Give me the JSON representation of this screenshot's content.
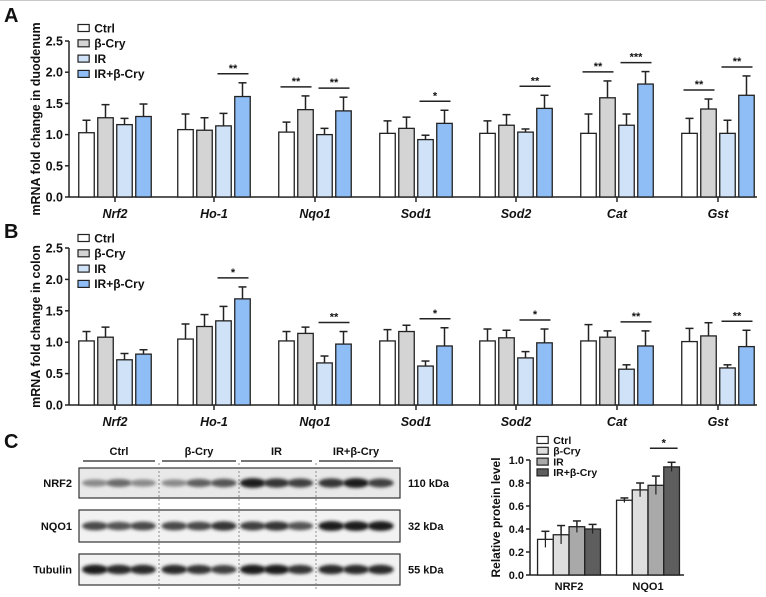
{
  "groups": [
    "Ctrl",
    "β-Cry",
    "IR",
    "IR+β-Cry"
  ],
  "colors_ab": [
    "#ffffff",
    "#d4d4d4",
    "#cfe2f8",
    "#8fbdf5"
  ],
  "colors_c": [
    "#ffffff",
    "#dedede",
    "#a9a9a9",
    "#5e5e5e"
  ],
  "chart_data": [
    {
      "panel": "A",
      "type": "bar",
      "ylabel": "mRNA fold change in duodenum",
      "ylim": [
        0,
        2.5
      ],
      "yticks": [
        "0.0",
        "0.5",
        "1.0",
        "1.5",
        "2.0",
        "2.5"
      ],
      "legend_placement": "top-left",
      "categories": [
        "Nrf2",
        "Ho-1",
        "Nqo1",
        "Sod1",
        "Sod2",
        "Cat",
        "Gst"
      ],
      "series": [
        {
          "name": "Ctrl",
          "values": [
            1.03,
            1.08,
            1.04,
            1.02,
            1.02,
            1.02,
            1.02
          ],
          "error": [
            0.2,
            0.25,
            0.16,
            0.2,
            0.2,
            0.31,
            0.24
          ]
        },
        {
          "name": "β-Cry",
          "values": [
            1.27,
            1.07,
            1.4,
            1.1,
            1.15,
            1.59,
            1.41
          ],
          "error": [
            0.21,
            0.2,
            0.22,
            0.18,
            0.17,
            0.27,
            0.16
          ]
        },
        {
          "name": "IR",
          "values": [
            1.16,
            1.14,
            1.0,
            0.92,
            1.04,
            1.15,
            1.02
          ],
          "error": [
            0.1,
            0.2,
            0.1,
            0.07,
            0.05,
            0.18,
            0.21
          ]
        },
        {
          "name": "IR+β-Cry",
          "values": [
            1.29,
            1.61,
            1.38,
            1.18,
            1.42,
            1.81,
            1.63
          ],
          "error": [
            0.2,
            0.22,
            0.22,
            0.21,
            0.21,
            0.2,
            0.31
          ]
        }
      ],
      "significance": [
        {
          "category": "Ho-1",
          "pair": [
            2,
            3
          ],
          "label": "**"
        },
        {
          "category": "Nqo1",
          "pair": [
            0,
            1
          ],
          "label": "**"
        },
        {
          "category": "Nqo1",
          "pair": [
            2,
            3
          ],
          "label": "**"
        },
        {
          "category": "Sod1",
          "pair": [
            2,
            3
          ],
          "label": "*"
        },
        {
          "category": "Sod2",
          "pair": [
            2,
            3
          ],
          "label": "**"
        },
        {
          "category": "Cat",
          "pair": [
            0,
            1
          ],
          "label": "**"
        },
        {
          "category": "Cat",
          "pair": [
            2,
            3
          ],
          "label": "***"
        },
        {
          "category": "Gst",
          "pair": [
            0,
            1
          ],
          "label": "**"
        },
        {
          "category": "Gst",
          "pair": [
            2,
            3
          ],
          "label": "**"
        }
      ]
    },
    {
      "panel": "B",
      "type": "bar",
      "ylabel": "mRNA fold change in colon",
      "ylim": [
        0,
        2.5
      ],
      "yticks": [
        "0.0",
        "0.5",
        "1.0",
        "1.5",
        "2.0",
        "2.5"
      ],
      "legend_placement": "top-left",
      "categories": [
        "Nrf2",
        "Ho-1",
        "Nqo1",
        "Sod1",
        "Sod2",
        "Cat",
        "Gst"
      ],
      "series": [
        {
          "name": "Ctrl",
          "values": [
            1.02,
            1.05,
            1.02,
            1.02,
            1.02,
            1.02,
            1.01
          ],
          "error": [
            0.15,
            0.24,
            0.15,
            0.18,
            0.19,
            0.26,
            0.21
          ]
        },
        {
          "name": "β-Cry",
          "values": [
            1.08,
            1.25,
            1.14,
            1.17,
            1.07,
            1.08,
            1.1
          ],
          "error": [
            0.16,
            0.19,
            0.1,
            0.1,
            0.12,
            0.1,
            0.21
          ]
        },
        {
          "name": "IR",
          "values": [
            0.72,
            1.34,
            0.67,
            0.62,
            0.75,
            0.57,
            0.59
          ],
          "error": [
            0.1,
            0.23,
            0.11,
            0.08,
            0.1,
            0.07,
            0.05
          ]
        },
        {
          "name": "IR+β-Cry",
          "values": [
            0.81,
            1.69,
            0.97,
            0.94,
            0.99,
            0.94,
            0.93
          ],
          "error": [
            0.07,
            0.19,
            0.2,
            0.29,
            0.22,
            0.24,
            0.26
          ]
        }
      ],
      "significance": [
        {
          "category": "Ho-1",
          "pair": [
            2,
            3
          ],
          "label": "*"
        },
        {
          "category": "Nqo1",
          "pair": [
            2,
            3
          ],
          "label": "**"
        },
        {
          "category": "Sod1",
          "pair": [
            2,
            3
          ],
          "label": "*"
        },
        {
          "category": "Sod2",
          "pair": [
            2,
            3
          ],
          "label": "*"
        },
        {
          "category": "Cat",
          "pair": [
            2,
            3
          ],
          "label": "**"
        },
        {
          "category": "Gst",
          "pair": [
            2,
            3
          ],
          "label": "**"
        }
      ]
    },
    {
      "panel": "C",
      "type": "bar",
      "ylabel": "Relative protein level",
      "ylim": [
        0,
        1.0
      ],
      "yticks": [
        "0.0",
        "0.2",
        "0.4",
        "0.6",
        "0.8",
        "1.0"
      ],
      "legend_placement": "top-left",
      "categories": [
        "NRF2",
        "NQO1"
      ],
      "series": [
        {
          "name": "Ctrl",
          "values": [
            0.31,
            0.65
          ],
          "error": [
            0.07,
            0.02
          ]
        },
        {
          "name": "β-Cry",
          "values": [
            0.35,
            0.74
          ],
          "error": [
            0.08,
            0.06
          ]
        },
        {
          "name": "IR",
          "values": [
            0.42,
            0.78
          ],
          "error": [
            0.05,
            0.08
          ]
        },
        {
          "name": "IR+β-Cry",
          "values": [
            0.4,
            0.94
          ],
          "error": [
            0.04,
            0.04
          ]
        }
      ],
      "significance": [
        {
          "category": "NQO1",
          "pair": [
            2,
            3
          ],
          "label": "*"
        }
      ]
    }
  ],
  "blot": {
    "panel": "C",
    "group_labels": [
      "Ctrl",
      "β-Cry",
      "IR",
      "IR+β-Cry"
    ],
    "rows": [
      {
        "protein": "NRF2",
        "size": "110 kDa",
        "band_intensity": [
          0.45,
          0.6,
          0.45,
          0.45,
          0.65,
          0.7,
          0.95,
          0.85,
          0.8,
          0.85,
          0.95,
          0.8
        ]
      },
      {
        "protein": "NQO1",
        "size": "32 kDa",
        "band_intensity": [
          0.75,
          0.7,
          0.75,
          0.75,
          0.75,
          0.85,
          0.8,
          0.85,
          0.7,
          0.95,
          0.95,
          0.95
        ]
      },
      {
        "protein": "Tubulin",
        "size": "55 kDa",
        "band_intensity": [
          0.95,
          0.9,
          0.9,
          0.9,
          0.85,
          0.8,
          0.95,
          0.95,
          0.85,
          0.9,
          0.9,
          0.9
        ]
      }
    ]
  }
}
